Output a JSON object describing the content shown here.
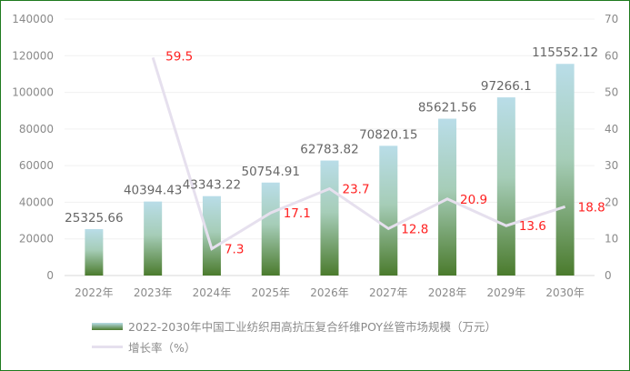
{
  "chart_data": {
    "type": "bar+line",
    "categories": [
      "2022年",
      "2023年",
      "2024年",
      "2025年",
      "2026年",
      "2027年",
      "2028年",
      "2029年",
      "2030年"
    ],
    "series": [
      {
        "name": "2022-2030年中国工业纺织用高抗压复合纤维POY丝管市场规模（万元）",
        "type": "bar",
        "axis": "left",
        "values": [
          25325.66,
          40394.43,
          43343.22,
          50754.91,
          62783.82,
          70820.15,
          85621.56,
          97266.1,
          115552.12
        ],
        "labels": [
          "25325.66",
          "40394.43",
          "43343.22",
          "50754.91",
          "62783.82",
          "70820.15",
          "85621.56",
          "97266.1",
          "115552.12"
        ]
      },
      {
        "name": "增长率（%）",
        "type": "line",
        "axis": "right",
        "values": [
          null,
          59.5,
          7.3,
          17.1,
          23.7,
          12.8,
          20.9,
          13.6,
          18.8
        ],
        "labels": [
          "",
          "59.5",
          "7.3",
          "17.1",
          "23.7",
          "12.8",
          "20.9",
          "13.6",
          "18.8"
        ]
      }
    ],
    "left_axis": {
      "range": [
        0,
        140000
      ],
      "ticks": [
        "0",
        "20000",
        "40000",
        "60000",
        "80000",
        "100000",
        "120000",
        "140000"
      ]
    },
    "right_axis": {
      "range": [
        0,
        70
      ],
      "ticks": [
        "0",
        "10",
        "20",
        "30",
        "40",
        "50",
        "60",
        "70"
      ]
    },
    "grid": true,
    "legend_position": "bottom-left",
    "colors": {
      "bar_top": "#b9dde8",
      "bar_bottom": "#4b7b2d",
      "line": "#e6e0ee",
      "line_label": "#ff2020"
    }
  }
}
